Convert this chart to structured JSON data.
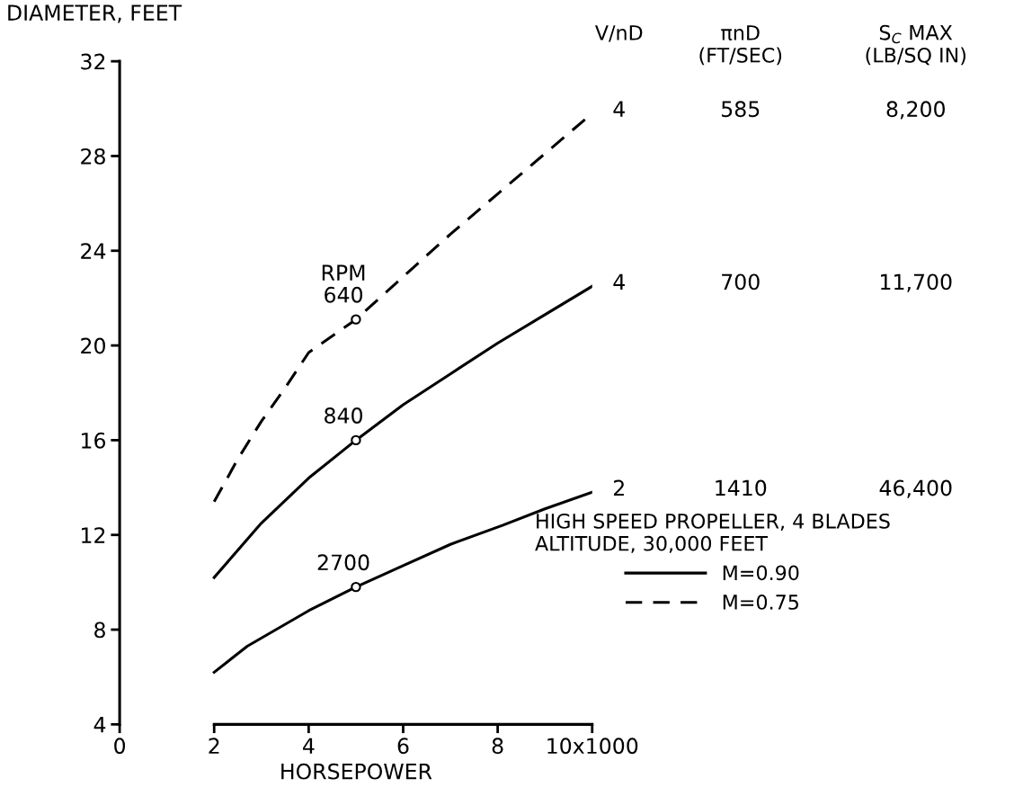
{
  "chart_data": {
    "type": "line",
    "xlabel": "HORSEPOWER",
    "ylabel": "DIAMETER, FEET",
    "legend_title": "HIGH SPEED PROPELLER, 4 BLADES\nALTITUDE, 30,000 FEET",
    "xlim": [
      0,
      10
    ],
    "ylim": [
      4,
      32
    ],
    "xticks": [
      0,
      2,
      4,
      6,
      8,
      {
        "value": 10,
        "label": "10x1000"
      }
    ],
    "yticks": [
      4,
      8,
      12,
      16,
      20,
      24,
      28,
      32
    ],
    "grid": false,
    "legend": "bottom right",
    "series": [
      {
        "name": "M=0.90",
        "color": "#000000",
        "line_style": "solid",
        "x": [
          2,
          2.7,
          4,
          5,
          6,
          7,
          8.1,
          9,
          10
        ],
        "values": [
          6.2,
          7.3,
          8.8,
          9.8,
          10.7,
          11.6,
          12.4,
          13.1,
          13.8
        ]
      },
      {
        "color": "#000000",
        "line_style": "solid",
        "x": [
          2,
          3,
          4,
          5,
          6,
          7,
          8,
          9,
          10
        ],
        "values": [
          10.2,
          12.5,
          14.4,
          16.0,
          17.5,
          18.8,
          20.1,
          21.3,
          22.5
        ]
      },
      {
        "name": "M=0.75",
        "color": "#000000",
        "line_style": "dashed",
        "x": [
          2,
          2.5,
          3,
          3.5,
          4,
          5,
          6,
          7,
          8,
          9,
          10
        ],
        "values": [
          13.4,
          15.2,
          16.8,
          18.2,
          19.7,
          21.1,
          22.9,
          24.7,
          26.4,
          28.1,
          29.8
        ]
      },
      {
        "type": "scatter",
        "color": "#000000",
        "marker": "circle",
        "x": [
          5,
          5,
          5
        ],
        "values": [
          9.8,
          16.0,
          21.1
        ]
      }
    ],
    "annotations": [
      "V/nD",
      "πnD\n(FT/SEC)",
      "S$_{C}$ MAX\n(LB/SQ IN)",
      "4",
      "585",
      "8,200",
      "4",
      "700",
      "11,700",
      "2",
      "1410",
      "46,400",
      "RPM\n640",
      "840",
      "2700"
    ]
  }
}
